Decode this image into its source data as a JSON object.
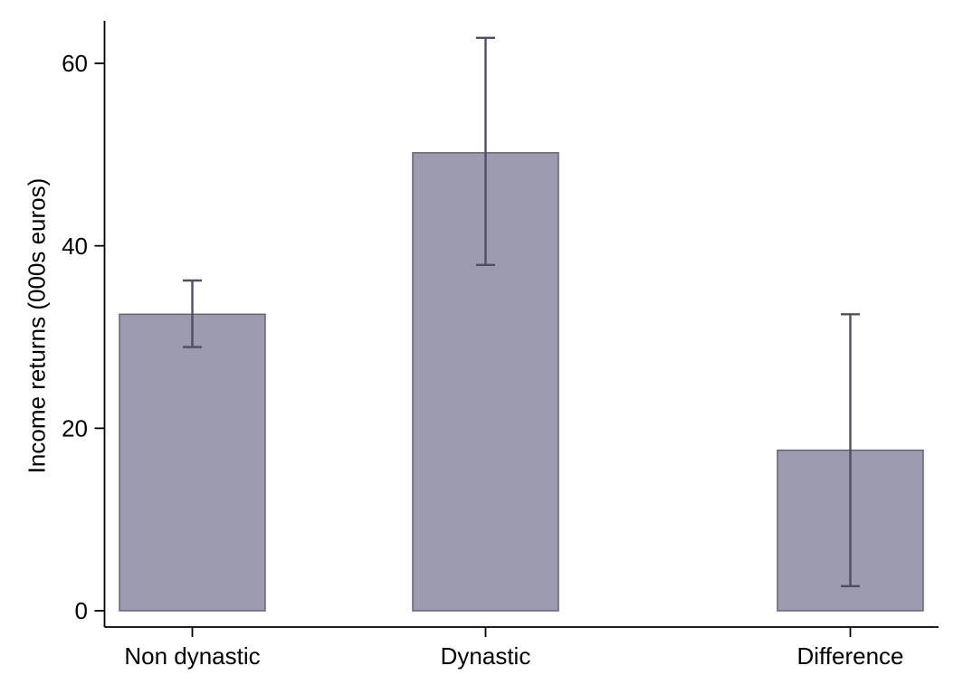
{
  "chart_data": {
    "type": "bar",
    "title": "",
    "xlabel": "",
    "ylabel": "Income returns (000s euros)",
    "categories": [
      "Non dynastic",
      "Dynastic",
      "Difference"
    ],
    "values": [
      32.5,
      50.2,
      17.6
    ],
    "error_low": [
      28.9,
      37.9,
      2.7
    ],
    "error_high": [
      36.2,
      62.8,
      32.5
    ],
    "yticks": [
      0,
      20,
      40,
      60
    ],
    "ytick_labels": [
      "0",
      "20",
      "40",
      "60"
    ],
    "ylim": [
      0,
      64.7
    ],
    "grid": false,
    "legend": "none",
    "error_bars": true,
    "colors": {
      "background": "#ffffff",
      "bar_fill": "#9d9baf",
      "bar_border": "#64637b",
      "error_bar": "#4f4e66",
      "axis": "#000000",
      "text": "#000000"
    }
  }
}
